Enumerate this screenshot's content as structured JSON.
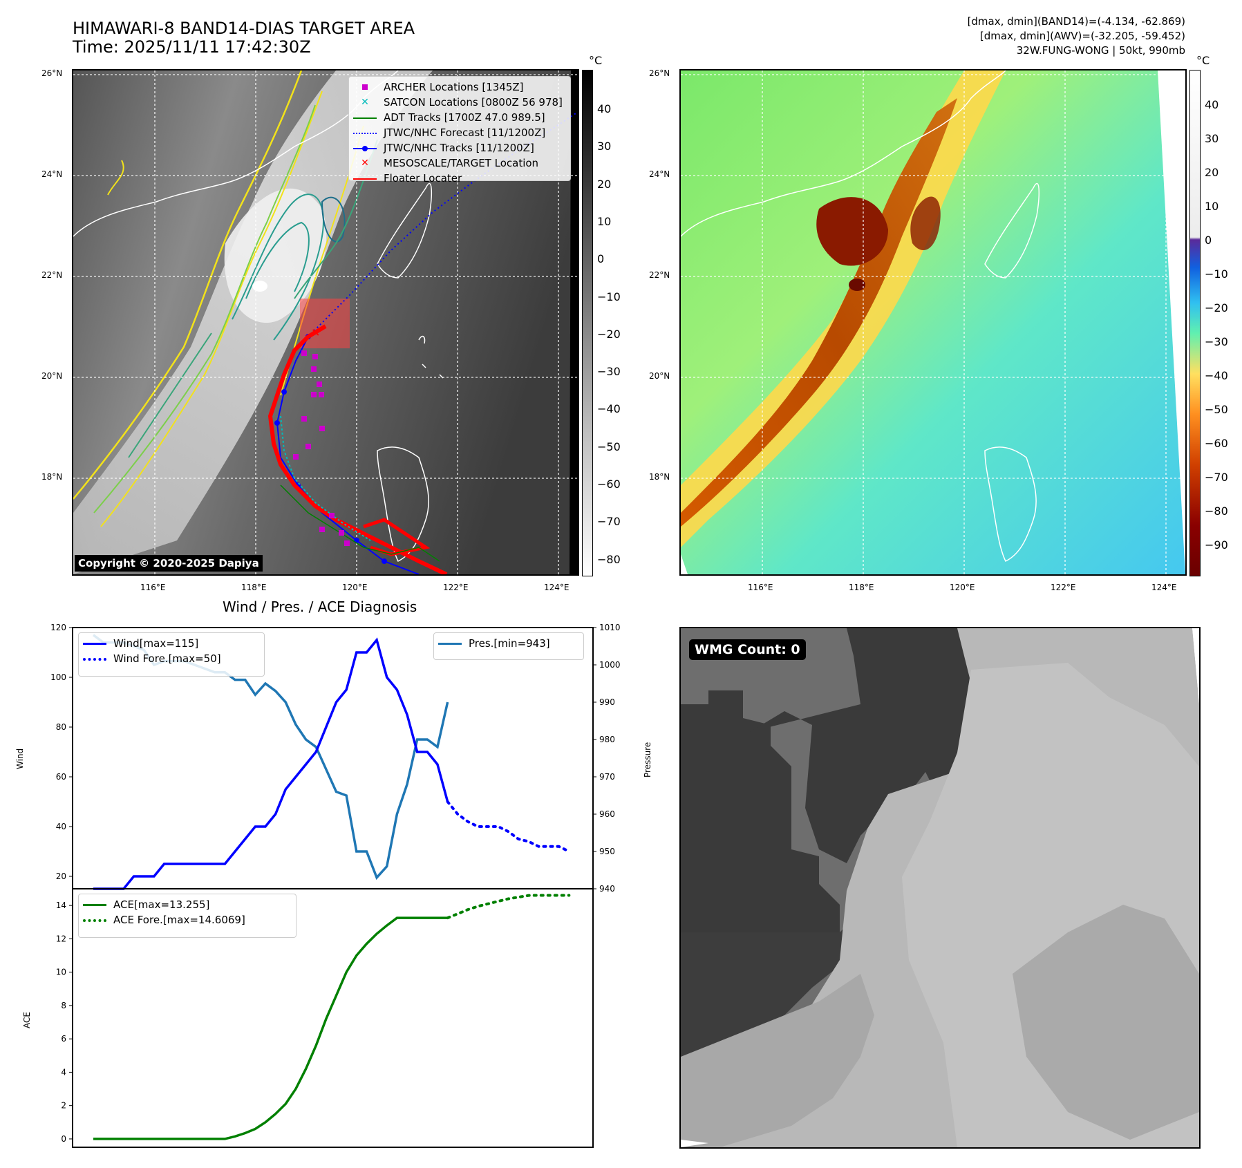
{
  "header": {
    "title_line1": "HIMAWARI-8 BAND14-DIAS TARGET AREA",
    "title_line2": "Time: 2025/11/11 17:42:30Z",
    "info_line1": "[dmax, dmin](BAND14)=(-4.134, -62.869)",
    "info_line2": "[dmax, dmin](AWV)=(-32.205, -59.452)",
    "info_line3": "32W.FUNG-WONG | 50kt, 990mb"
  },
  "map": {
    "lat_labels": [
      "26°N",
      "24°N",
      "22°N",
      "20°N",
      "18°N"
    ],
    "lon_labels": [
      "116°E",
      "118°E",
      "120°E",
      "122°E",
      "124°E"
    ],
    "copyright": "Copyright © 2020-2025 Dapiya",
    "colors": {
      "archer": "#cc00cc",
      "satcon": "#00bbbb",
      "adt": "#008000",
      "forecast": "#0000ff",
      "track": "#0000ff",
      "target": "#ff0000",
      "floater": "#ff0000"
    },
    "legend": [
      {
        "label": "ARCHER Locations [1345Z]",
        "icon": "square-marker"
      },
      {
        "label": "SATCON Locations [0800Z 56 978]",
        "icon": "x-marker"
      },
      {
        "label": "ADT Tracks [1700Z 47.0 989.5]",
        "icon": "solid-line"
      },
      {
        "label": "JTWC/NHC Forecast [11/1200Z]",
        "icon": "dotted-line"
      },
      {
        "label": "JTWC/NHC Tracks [11/1200Z]",
        "icon": "line-with-dot"
      },
      {
        "label": "MESOSCALE/TARGET Location",
        "icon": "x-marker"
      },
      {
        "label": "Floater Locater",
        "icon": "solid-line"
      }
    ]
  },
  "colorbar_gray": {
    "unit": "°C",
    "ticks": [
      "40",
      "30",
      "20",
      "10",
      "0",
      "−10",
      "−20",
      "−30",
      "−40",
      "−50",
      "−60",
      "−70",
      "−80"
    ]
  },
  "colorbar_color": {
    "unit": "°C",
    "ticks": [
      "40",
      "30",
      "20",
      "10",
      "0",
      "−10",
      "−20",
      "−30",
      "−40",
      "−50",
      "−60",
      "−70",
      "−80",
      "−90"
    ]
  },
  "wmg": {
    "label": "WMG Count: 0"
  },
  "chart_data": [
    {
      "type": "line",
      "title": "Wind / Pres. / ACE Diagnosis",
      "ylabel": "Wind",
      "y2label": "Pressure",
      "ylim": [
        15,
        120
      ],
      "y2lim": [
        940,
        1010
      ],
      "yticks": [
        20,
        40,
        60,
        80,
        100,
        120
      ],
      "y2ticks": [
        940,
        950,
        960,
        970,
        980,
        990,
        1000,
        1010
      ],
      "x": [
        0,
        1,
        2,
        3,
        4,
        5,
        6,
        7,
        8,
        9,
        10,
        11,
        12,
        13,
        14,
        15,
        16,
        17,
        18,
        19,
        20,
        21,
        22,
        23,
        24,
        25,
        26,
        27,
        28,
        29,
        30,
        31,
        32,
        33,
        34,
        35,
        36,
        37,
        38,
        39,
        40,
        41,
        42,
        43,
        44,
        45,
        46,
        47
      ],
      "series": [
        {
          "name": "Wind[max=115]",
          "axis": "left",
          "color": "#0000ff",
          "style": "solid",
          "x": [
            0,
            1,
            2,
            3,
            4,
            5,
            6,
            7,
            8,
            9,
            10,
            11,
            12,
            13,
            14,
            15,
            16,
            17,
            18,
            19,
            20,
            21,
            22,
            23,
            24,
            25,
            26,
            27,
            28,
            29,
            30,
            31,
            32,
            33,
            34,
            35
          ],
          "values": [
            15,
            15,
            15,
            15,
            20,
            20,
            20,
            25,
            25,
            25,
            25,
            25,
            25,
            25,
            30,
            35,
            40,
            40,
            45,
            55,
            60,
            65,
            70,
            80,
            90,
            95,
            110,
            110,
            115,
            100,
            95,
            85,
            70,
            70,
            65,
            50
          ]
        },
        {
          "name": "Wind Fore.[max=50]",
          "axis": "left",
          "color": "#0000ff",
          "style": "dotted",
          "x": [
            35,
            36,
            37,
            38,
            39,
            40,
            41,
            42,
            43,
            44,
            45,
            46,
            47
          ],
          "values": [
            50,
            45,
            42,
            40,
            40,
            40,
            38,
            35,
            34,
            32,
            32,
            32,
            30
          ]
        },
        {
          "name": "Pres.[min=943]",
          "axis": "right",
          "color": "#1f77b4",
          "style": "solid",
          "x": [
            0,
            1,
            2,
            3,
            4,
            5,
            6,
            7,
            8,
            9,
            10,
            11,
            12,
            13,
            14,
            15,
            16,
            17,
            18,
            19,
            20,
            21,
            22,
            23,
            24,
            25,
            26,
            27,
            28,
            29,
            30,
            31,
            32,
            33,
            34,
            35
          ],
          "values": [
            1008,
            1006,
            1006,
            1006,
            1005,
            1004,
            1000,
            1001,
            1001,
            1001,
            1000,
            999,
            998,
            998,
            996,
            996,
            992,
            995,
            993,
            990,
            984,
            980,
            978,
            972,
            966,
            965,
            950,
            950,
            943,
            946,
            960,
            968,
            980,
            980,
            978,
            990
          ]
        }
      ]
    },
    {
      "type": "line",
      "ylabel": "ACE",
      "ylim": [
        -0.5,
        15
      ],
      "yticks": [
        0,
        2,
        4,
        6,
        8,
        10,
        12,
        14
      ],
      "series": [
        {
          "name": "ACE[max=13.255]",
          "color": "#008000",
          "style": "solid",
          "x": [
            0,
            13,
            14,
            15,
            16,
            17,
            18,
            19,
            20,
            21,
            22,
            23,
            24,
            25,
            26,
            27,
            28,
            29,
            30,
            31,
            32,
            33,
            34,
            35
          ],
          "values": [
            0,
            0,
            0.15,
            0.35,
            0.6,
            1.0,
            1.5,
            2.1,
            3.0,
            4.2,
            5.6,
            7.2,
            8.6,
            10.0,
            11.0,
            11.7,
            12.3,
            12.8,
            13.255,
            13.255,
            13.255,
            13.255,
            13.255,
            13.255
          ]
        },
        {
          "name": "ACE Fore.[max=14.6069]",
          "color": "#008000",
          "style": "dotted",
          "x": [
            35,
            36,
            37,
            38,
            39,
            40,
            41,
            42,
            43,
            44,
            45,
            46,
            47
          ],
          "values": [
            13.255,
            13.5,
            13.75,
            13.95,
            14.1,
            14.25,
            14.4,
            14.5,
            14.6,
            14.6069,
            14.6069,
            14.6069,
            14.6069
          ]
        }
      ]
    }
  ]
}
